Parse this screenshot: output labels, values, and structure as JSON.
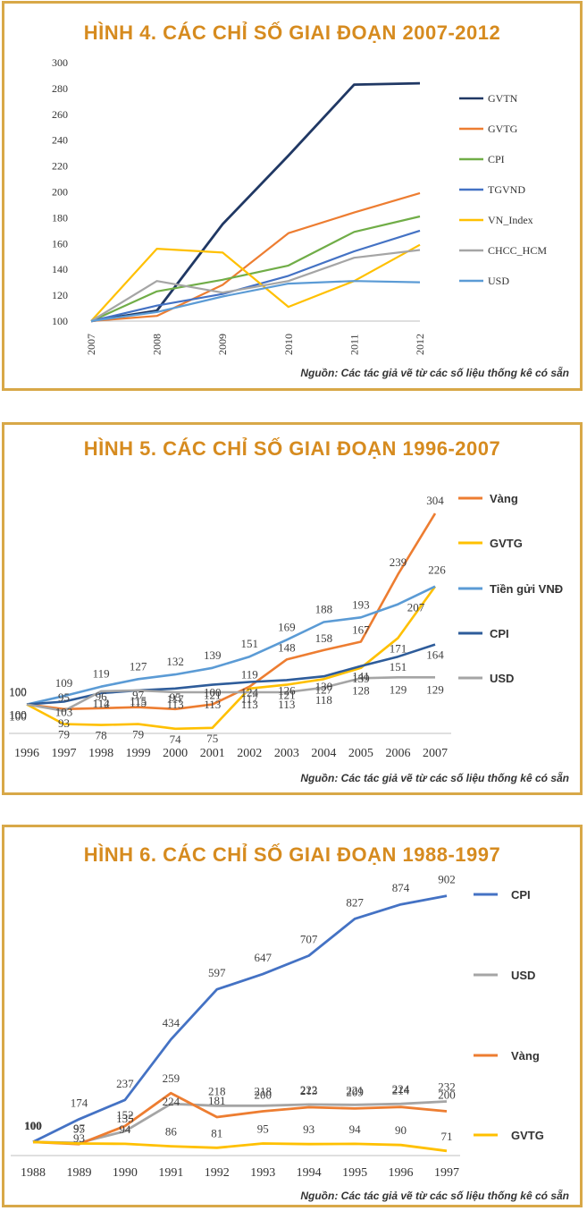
{
  "colors": {
    "border": "#d8a848",
    "title": "#d68b1f"
  },
  "chart_data": [
    {
      "type": "line",
      "title": "HÌNH 4. CÁC CHỈ SỐ GIAI ĐOẠN 2007-2012",
      "source": "Nguồn: Các tác giả vẽ từ các số liệu thống kê có sẵn",
      "categories": [
        "2007",
        "2008",
        "2009",
        "2010",
        "2011",
        "2012"
      ],
      "ylim": [
        100,
        300
      ],
      "yticks": [
        "100",
        "120",
        "140",
        "160",
        "180",
        "200",
        "220",
        "240",
        "260",
        "280",
        "300"
      ],
      "series": [
        {
          "name": "GVTN",
          "color": "#203864",
          "values": [
            100,
            108,
            175,
            228,
            283,
            284
          ]
        },
        {
          "name": "GVTG",
          "color": "#ed7d31",
          "values": [
            100,
            104,
            128,
            168,
            184,
            199
          ]
        },
        {
          "name": "CPI",
          "color": "#70ad47",
          "values": [
            100,
            123,
            132,
            143,
            169,
            181
          ]
        },
        {
          "name": "TGVND",
          "color": "#4472c4",
          "values": [
            100,
            112,
            121,
            135,
            154,
            170
          ]
        },
        {
          "name": "VN_Index",
          "color": "#ffc000",
          "values": [
            100,
            156,
            153,
            111,
            131,
            159
          ]
        },
        {
          "name": "CHCC_HCM",
          "color": "#a5a5a5",
          "values": [
            100,
            131,
            122,
            131,
            149,
            155
          ]
        },
        {
          "name": "USD",
          "color": "#5b9bd5",
          "values": [
            100,
            107,
            119,
            129,
            131,
            130
          ]
        }
      ]
    },
    {
      "type": "line",
      "title": "HÌNH 5. CÁC CHỈ SỐ GIAI ĐOẠN 1996-2007",
      "source": "Nguồn: Các tác giả vẽ từ các số liệu thống kê có sẵn",
      "categories": [
        "1996",
        "1997",
        "1998",
        "1999",
        "2000",
        "2001",
        "2002",
        "2003",
        "2004",
        "2005",
        "2006",
        "2007"
      ],
      "series": [
        {
          "name": "Vàng",
          "color": "#ed7d31",
          "values": [
            100,
            95,
            96,
            97,
            95,
            100,
            119,
            148,
            158,
            167,
            239,
            304
          ],
          "labels": [
            "100",
            "95",
            "96",
            "97",
            "95",
            "100",
            "119",
            "148",
            "158",
            "167",
            "239",
            "304"
          ]
        },
        {
          "name": "GVTG",
          "color": "#ffc000",
          "values": [
            100,
            79,
            78,
            79,
            74,
            75,
            117,
            121,
            127,
            139,
            171,
            226
          ],
          "labels": [
            "100",
            "79",
            "78",
            "79",
            "74",
            "75",
            "117",
            "121",
            "127",
            "139",
            "171",
            "226"
          ]
        },
        {
          "name": "Tiền gửi VNĐ",
          "color": "#5b9bd5",
          "values": [
            100,
            109,
            119,
            127,
            132,
            139,
            151,
            169,
            188,
            193,
            207,
            226
          ],
          "labels": [
            "100",
            "109",
            "119",
            "127",
            "132",
            "139",
            "151",
            "169",
            "188",
            "193",
            "207",
            ""
          ]
        },
        {
          "name": "CPI",
          "color": "#2e5c9a",
          "values": [
            100,
            103,
            112,
            115,
            117,
            121,
            124,
            126,
            130,
            141,
            151,
            164
          ],
          "labels": [
            "100",
            "103",
            "112",
            "115",
            "117",
            "121",
            "124",
            "126",
            "130",
            "141",
            "151",
            "164"
          ]
        },
        {
          "name": "USD",
          "color": "#a5a5a5",
          "values": [
            100,
            93,
            114,
            115,
            113,
            113,
            113,
            113,
            118,
            128,
            129,
            129
          ],
          "labels": [
            "100",
            "93",
            "114",
            "115",
            "113",
            "113",
            "113",
            "113",
            "118",
            "128",
            "129",
            "129"
          ]
        }
      ]
    },
    {
      "type": "line",
      "title": "HÌNH 6. CÁC CHỈ SỐ GIAI ĐOẠN 1988-1997",
      "source": "Nguồn: Các tác giả vẽ từ các số liệu thống kê có sẵn",
      "categories": [
        "1988",
        "1989",
        "1990",
        "1991",
        "1992",
        "1993",
        "1994",
        "1995",
        "1996",
        "1997"
      ],
      "series": [
        {
          "name": "CPI",
          "color": "#4472c4",
          "values": [
            100,
            174,
            237,
            434,
            597,
            647,
            707,
            827,
            874,
            902
          ],
          "labels": [
            "100",
            "174",
            "237",
            "434",
            "597",
            "647",
            "707",
            "827",
            "874",
            "902"
          ]
        },
        {
          "name": "USD",
          "color": "#a5a5a5",
          "values": [
            100,
            97,
            135,
            224,
            218,
            218,
            222,
            221,
            224,
            232
          ],
          "labels": [
            "100",
            "97",
            "135",
            "224",
            "218",
            "218",
            "222",
            "221",
            "224",
            "232"
          ]
        },
        {
          "name": "Vàng",
          "color": "#ed7d31",
          "values": [
            100,
            93,
            152,
            259,
            181,
            200,
            213,
            209,
            214,
            200
          ],
          "labels": [
            "100",
            "93",
            "152",
            "259",
            "181",
            "200",
            "213",
            "209",
            "214",
            "200"
          ]
        },
        {
          "name": "GVTG",
          "color": "#ffc000",
          "values": [
            100,
            95,
            94,
            86,
            81,
            95,
            93,
            94,
            90,
            71
          ],
          "labels": [
            "100",
            "95",
            "94",
            "86",
            "81",
            "95",
            "93",
            "94",
            "90",
            "71"
          ]
        }
      ]
    }
  ]
}
